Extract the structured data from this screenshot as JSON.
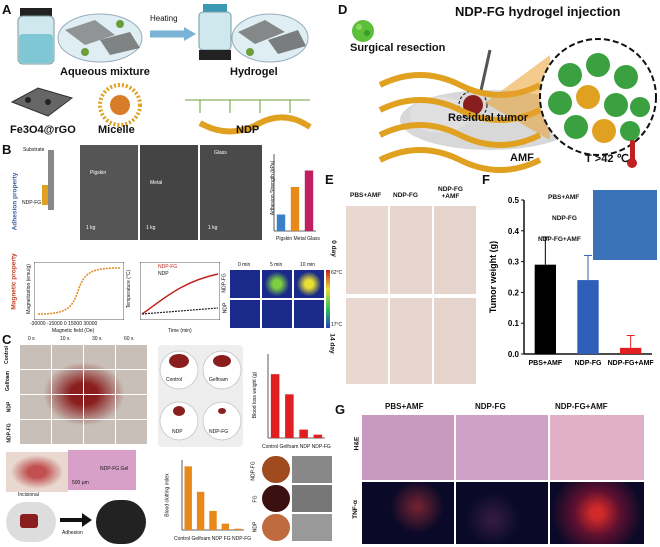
{
  "colors": {
    "gold": "#e0a020",
    "tissue": "#8a1e1e",
    "blue_bar": "#2f5fb8",
    "red_bar": "#e02020",
    "orange_bar": "#e8891a",
    "skin": "#e8d8d0",
    "hne": "#d8a0c8",
    "tnf": "#0a0a28"
  },
  "panels": {
    "A": {
      "label": "A",
      "heating": "Heating",
      "aqueous": "Aqueous mixture",
      "hydrogel": "Hydrogel",
      "fe3o4": "Fe3O4@rGO",
      "micelle": "Micelle",
      "ndp": "NDP"
    },
    "B": {
      "label": "B",
      "adhesion_property": "Adhesion property",
      "magnetic_property": "Magnetic property",
      "substrate": "Substrate",
      "ndp_fg": "NDP-FG",
      "pigskin": "Pigskin",
      "metal": "Metal",
      "glass": "Glass",
      "weight": "1 kg",
      "adhesion_ylabel": "Adhesion Strength (kPa)",
      "adhesion_xlabels": "Pigskin Metal Glass",
      "mag_ylabel": "Magnetization (emu/g)",
      "mag_xlabel": "Magnetic field (Oe)",
      "mag_ticks": "-30000 -15000 0 15000 30000",
      "temp_ylabel": "Temperature (°C)",
      "temp_xlabel": "Time (min)",
      "legend_ndpfg": "NDP-FG",
      "legend_ndp": "NDP",
      "thermal_0": "0 min",
      "thermal_5": "5 min",
      "thermal_10": "10 min",
      "thermal_max": "62°C",
      "thermal_min": "17°C",
      "row_ndpfg": "NDP-FG",
      "row_ndp": "NDP"
    },
    "C": {
      "label": "C",
      "times": [
        "0 s",
        "10 s",
        "30 s",
        "60 s"
      ],
      "rows": [
        "Control",
        "Gelfoam",
        "NDP",
        "NDP-FG"
      ],
      "photo_labels": [
        "Control",
        "Gelfoam",
        "NDP",
        "NDP-FG"
      ],
      "blood_ylabel": "Blood loss weight (g)",
      "blood_xlabels": "Control Gelfoam NDP NDP-FG",
      "incisional": "Incisional",
      "ndp_fg_gel": "NDP-FG Gel",
      "scale": "500 μm",
      "adhesion": "Adhesion",
      "clot_ylabel": "Blood clotting index",
      "clot_xlabels": "Control Gelfoam NDP FG NDP-FG",
      "sem_rows": [
        "NDP-FG",
        "FG",
        "NDP"
      ]
    },
    "D": {
      "label": "D",
      "title": "NDP-FG hydrogel injection",
      "surgical": "Surgical resection",
      "residual": "Residual tumor",
      "amf": "AMF",
      "temp": "T >42 ℃"
    },
    "E": {
      "label": "E",
      "cols": [
        "PBS+AMF",
        "NDP-FG",
        "NDP-FG\n+AMF"
      ],
      "rows": [
        "0 day",
        "14 day"
      ]
    },
    "F": {
      "label": "F",
      "inset": [
        "PBS+AMF",
        "NDP-FG",
        "NDP-FG+AMF"
      ]
    },
    "G": {
      "label": "G",
      "cols": [
        "PBS+AMF",
        "NDP-FG",
        "NDP-FG+AMF"
      ],
      "rows": [
        "H&E",
        "TNF-α"
      ]
    }
  },
  "chart_data": [
    {
      "type": "bar",
      "categories": [
        "PBS+AMF",
        "NDP-FG",
        "NDP-FG+AMF"
      ],
      "values": [
        0.29,
        0.24,
        0.02
      ],
      "errors": [
        0.09,
        0.08,
        0.04
      ],
      "ylabel": "Tumor weight (g)",
      "ylim": [
        0,
        0.5
      ],
      "yticks": [
        "0.0",
        "0.1",
        "0.2",
        "0.3",
        "0.4",
        "0.5"
      ],
      "colors": [
        "#000000",
        "#2f5fb8",
        "#e02020"
      ]
    },
    {
      "type": "bar",
      "categories": [
        "Pigskin",
        "Metal",
        "Glass"
      ],
      "values": [
        15,
        40,
        55
      ],
      "ylim": [
        0,
        70
      ],
      "ylabel": "Adhesion Strength (kPa)"
    },
    {
      "type": "bar",
      "categories": [
        "Control",
        "Gelfoam",
        "NDP",
        "NDP-FG"
      ],
      "values": [
        1.9,
        1.3,
        0.25,
        0.1
      ],
      "ylim": [
        0,
        2.5
      ],
      "ylabel": "Blood loss weight (g)"
    },
    {
      "type": "bar",
      "categories": [
        "Control",
        "Gelfoam",
        "NDP",
        "FG",
        "NDP-FG"
      ],
      "values": [
        100,
        60,
        30,
        10,
        2
      ],
      "ylim": [
        0,
        110
      ],
      "ylabel": "Blood clotting index"
    }
  ]
}
